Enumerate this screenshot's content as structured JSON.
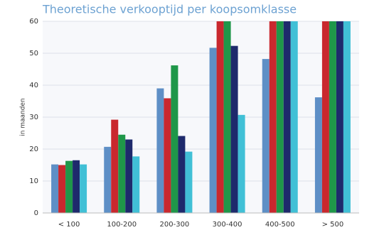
{
  "chart_data": {
    "type": "bar",
    "title": "Theoretische verkooptijd per koopsomklasse",
    "y_label": "in maanden",
    "categories": [
      "< 100",
      "100-200",
      "200-300",
      "300-400",
      "400-500",
      "> 500"
    ],
    "series": [
      {
        "color": "#5e8fc6",
        "values": [
          15.2,
          20.7,
          39,
          51.7,
          48.2,
          36.2
        ]
      },
      {
        "color": "#c9282e",
        "values": [
          15,
          29.2,
          35.9,
          60,
          60,
          60
        ]
      },
      {
        "color": "#1f9749",
        "values": [
          16.3,
          24.5,
          46.2,
          60,
          60,
          60
        ]
      },
      {
        "color": "#1e2a6c",
        "values": [
          16.5,
          23,
          24.1,
          52.3,
          60,
          60
        ]
      },
      {
        "color": "#41c0d6",
        "values": [
          15.2,
          17.7,
          19.2,
          30.7,
          60,
          60
        ]
      }
    ],
    "ylim": [
      0,
      60
    ],
    "yticks": [
      0,
      10,
      20,
      30,
      40,
      50,
      60
    ],
    "grid": true
  }
}
